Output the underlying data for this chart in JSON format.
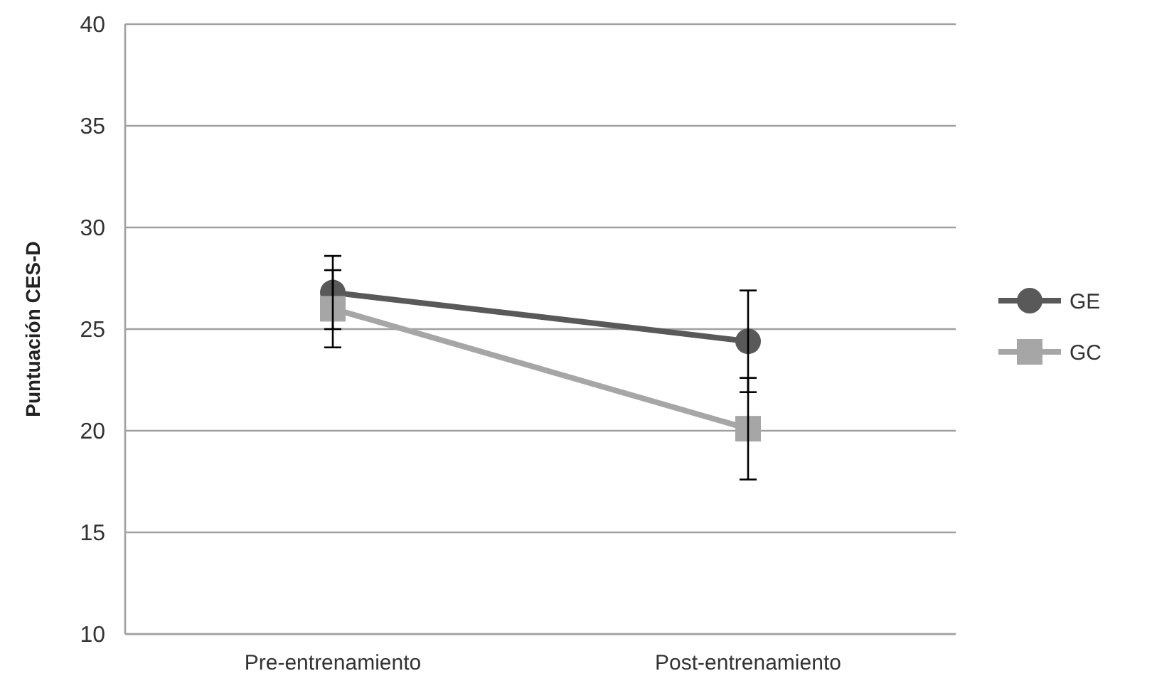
{
  "chart_data": {
    "type": "line",
    "ylabel": "Puntuación CES-D",
    "categories": [
      "Pre-entrenamiento",
      "Post-entrenamiento"
    ],
    "series": [
      {
        "name": "GE",
        "color": "#595959",
        "values": [
          26.8,
          24.4
        ],
        "errors": [
          1.8,
          2.5
        ],
        "marker": "circle"
      },
      {
        "name": "GC",
        "color": "#a6a6a6",
        "values": [
          26.0,
          20.1
        ],
        "errors": [
          1.9,
          2.5
        ],
        "marker": "square"
      }
    ],
    "ylim": [
      10,
      40
    ],
    "yticks": [
      10,
      15,
      20,
      25,
      30,
      35,
      40
    ],
    "grid": "y",
    "legend": "right",
    "line_style": "solid"
  }
}
